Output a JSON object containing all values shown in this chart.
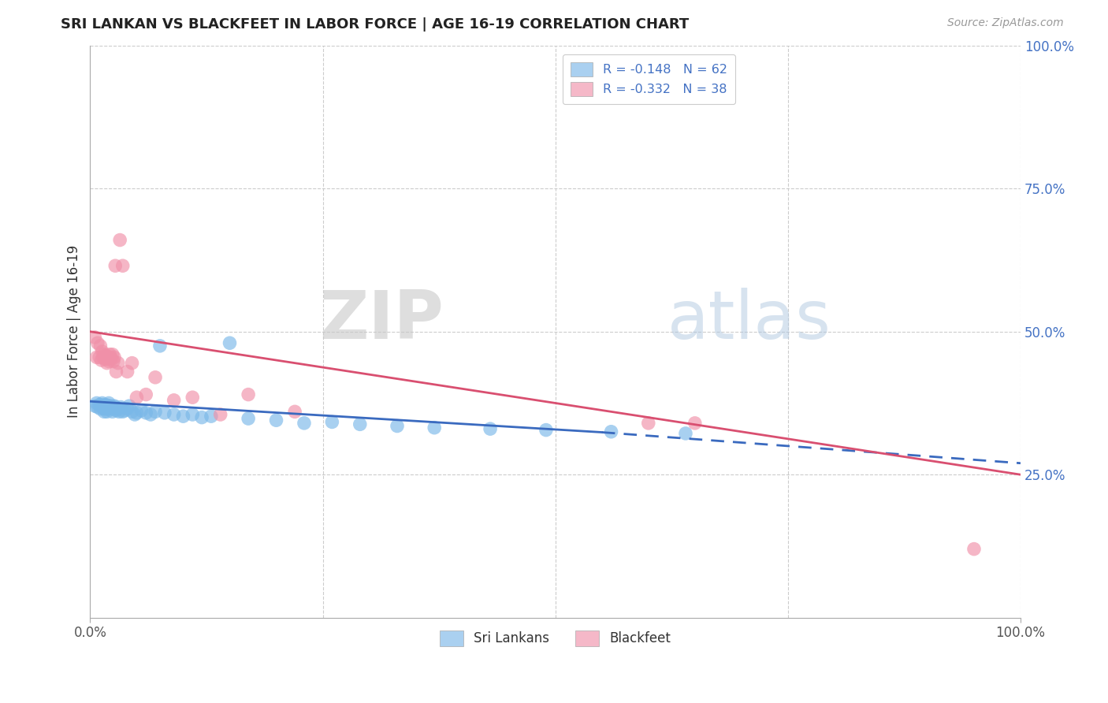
{
  "title": "SRI LANKAN VS BLACKFEET IN LABOR FORCE | AGE 16-19 CORRELATION CHART",
  "source_text": "Source: ZipAtlas.com",
  "ylabel": "In Labor Force | Age 16-19",
  "xlim": [
    0.0,
    1.0
  ],
  "ylim": [
    0.0,
    1.0
  ],
  "ytick_positions": [
    0.25,
    0.5,
    0.75,
    1.0
  ],
  "ytick_labels": [
    "25.0%",
    "50.0%",
    "75.0%",
    "100.0%"
  ],
  "watermark_zip": "ZIP",
  "watermark_atlas": "atlas",
  "sri_lankans_marker_color": "#7ab8e8",
  "blackfeet_marker_color": "#f090a8",
  "sri_lankans_line_color": "#3a6abf",
  "blackfeet_line_color": "#d94f70",
  "sri_lankans_legend_color": "#aad0f0",
  "blackfeet_legend_color": "#f5b8c8",
  "legend_label_1": "Sri Lankans",
  "legend_label_2": "Blackfeet",
  "background_color": "#ffffff",
  "grid_color": "#cccccc",
  "sri_lankans_x": [
    0.005,
    0.007,
    0.008,
    0.01,
    0.011,
    0.012,
    0.013,
    0.014,
    0.014,
    0.015,
    0.015,
    0.016,
    0.016,
    0.017,
    0.017,
    0.018,
    0.018,
    0.019,
    0.02,
    0.02,
    0.021,
    0.022,
    0.022,
    0.023,
    0.024,
    0.025,
    0.026,
    0.027,
    0.028,
    0.03,
    0.031,
    0.033,
    0.035,
    0.037,
    0.04,
    0.042,
    0.045,
    0.048,
    0.05,
    0.055,
    0.06,
    0.065,
    0.07,
    0.075,
    0.08,
    0.09,
    0.1,
    0.11,
    0.12,
    0.13,
    0.15,
    0.17,
    0.2,
    0.23,
    0.26,
    0.29,
    0.33,
    0.37,
    0.43,
    0.49,
    0.56,
    0.64
  ],
  "sri_lankans_y": [
    0.37,
    0.375,
    0.368,
    0.372,
    0.365,
    0.37,
    0.375,
    0.368,
    0.372,
    0.36,
    0.365,
    0.37,
    0.368,
    0.365,
    0.372,
    0.36,
    0.368,
    0.365,
    0.37,
    0.375,
    0.368,
    0.365,
    0.37,
    0.368,
    0.36,
    0.365,
    0.37,
    0.368,
    0.362,
    0.365,
    0.36,
    0.368,
    0.36,
    0.362,
    0.365,
    0.37,
    0.36,
    0.355,
    0.358,
    0.362,
    0.358,
    0.355,
    0.36,
    0.475,
    0.358,
    0.355,
    0.352,
    0.355,
    0.35,
    0.352,
    0.48,
    0.348,
    0.345,
    0.34,
    0.342,
    0.338,
    0.335,
    0.332,
    0.33,
    0.328,
    0.325,
    0.322
  ],
  "blackfeet_x": [
    0.005,
    0.007,
    0.008,
    0.01,
    0.011,
    0.012,
    0.013,
    0.014,
    0.015,
    0.016,
    0.017,
    0.018,
    0.019,
    0.02,
    0.021,
    0.022,
    0.023,
    0.024,
    0.025,
    0.026,
    0.027,
    0.028,
    0.03,
    0.032,
    0.035,
    0.04,
    0.045,
    0.05,
    0.06,
    0.07,
    0.09,
    0.11,
    0.14,
    0.17,
    0.22,
    0.6,
    0.65,
    0.95
  ],
  "blackfeet_y": [
    0.49,
    0.455,
    0.48,
    0.455,
    0.475,
    0.45,
    0.465,
    0.455,
    0.46,
    0.452,
    0.458,
    0.445,
    0.452,
    0.448,
    0.46,
    0.455,
    0.452,
    0.46,
    0.448,
    0.455,
    0.615,
    0.43,
    0.445,
    0.66,
    0.615,
    0.43,
    0.445,
    0.385,
    0.39,
    0.42,
    0.38,
    0.385,
    0.355,
    0.39,
    0.36,
    0.34,
    0.34,
    0.12
  ],
  "sri_line_x_start": 0.0,
  "sri_line_x_solid_end": 0.55,
  "sri_line_x_dashed_end": 1.0,
  "sri_line_y_start": 0.378,
  "sri_line_y_solid_end": 0.324,
  "sri_line_y_dashed_end": 0.27,
  "black_line_x_start": 0.0,
  "black_line_x_end": 1.0,
  "black_line_y_start": 0.5,
  "black_line_y_end": 0.25
}
